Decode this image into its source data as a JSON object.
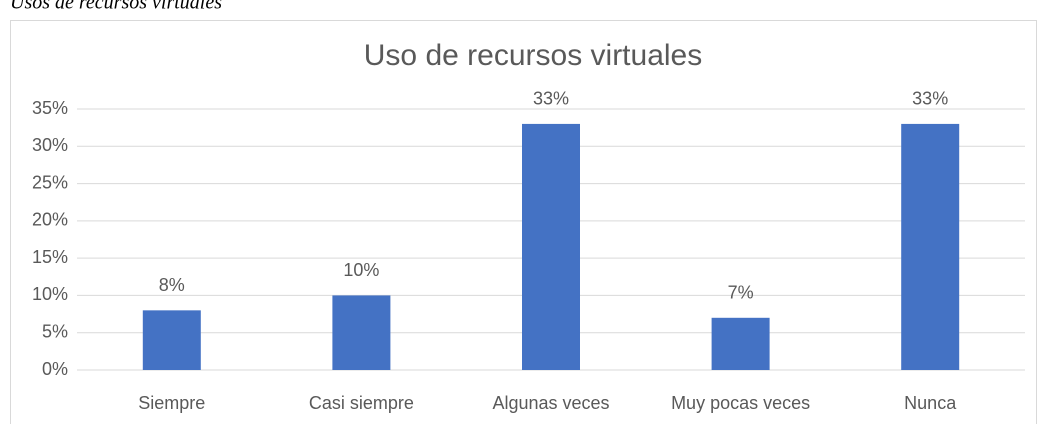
{
  "caption": "Usos de recursos virtuales",
  "chart_data": {
    "type": "bar",
    "title": "Uso de recursos virtuales",
    "categories": [
      "Siempre",
      "Casi siempre",
      "Algunas veces",
      "Muy pocas veces",
      "Nunca"
    ],
    "values": [
      8,
      10,
      33,
      7,
      33
    ],
    "value_labels": [
      "8%",
      "10%",
      "33%",
      "7%",
      "33%"
    ],
    "color": "#4472c4",
    "ylim": [
      0,
      35
    ],
    "yticks": [
      {
        "value": 0,
        "label": "0%"
      },
      {
        "value": 5,
        "label": "5%"
      },
      {
        "value": 10,
        "label": "10%"
      },
      {
        "value": 15,
        "label": "15%"
      },
      {
        "value": 20,
        "label": "20%"
      },
      {
        "value": 25,
        "label": "25%"
      },
      {
        "value": 30,
        "label": "30%"
      },
      {
        "value": 35,
        "label": "35%"
      }
    ],
    "grid": true
  }
}
